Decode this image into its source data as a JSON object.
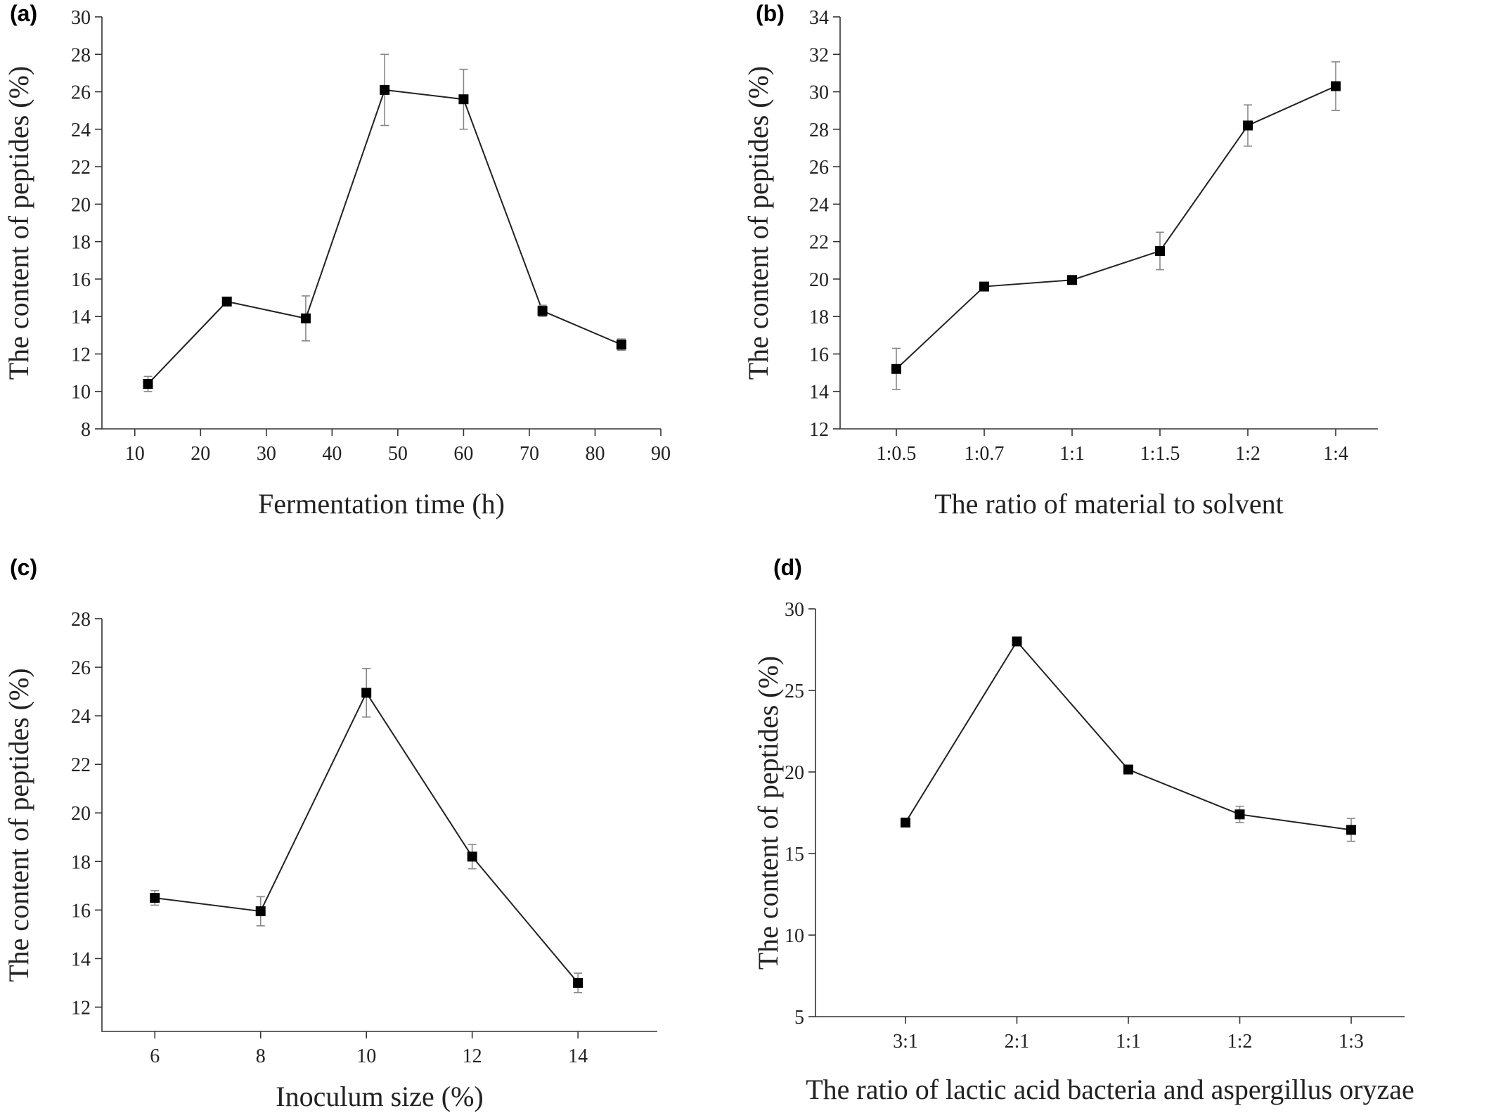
{
  "chart_data": [
    {
      "panel": "(a)",
      "type": "line",
      "xlabel": "Fermentation time (h)",
      "ylabel": "The content of  peptides (%)",
      "x_axis": "numeric",
      "xlim": [
        5,
        90
      ],
      "x_ticks": [
        10,
        20,
        30,
        40,
        50,
        60,
        70,
        80,
        90
      ],
      "ylim": [
        8,
        30
      ],
      "y_ticks": [
        8,
        10,
        12,
        14,
        16,
        18,
        20,
        22,
        24,
        26,
        28,
        30
      ],
      "x": [
        12,
        24,
        36,
        48,
        60,
        72,
        84
      ],
      "values": [
        10.4,
        14.8,
        13.9,
        26.1,
        25.6,
        14.3,
        12.5
      ],
      "errors": [
        0.4,
        0.2,
        1.2,
        1.9,
        1.6,
        0.3,
        0.3
      ],
      "grid": false
    },
    {
      "panel": "(b)",
      "type": "line",
      "xlabel": "The ratio of material to solvent",
      "ylabel": "The content of  peptides (%)",
      "x_axis": "categorical",
      "categories": [
        "1:0.5",
        "1:0.7",
        "1:1",
        "1:1.5",
        "1:2",
        "1:4"
      ],
      "ylim": [
        12,
        34
      ],
      "y_ticks": [
        12,
        14,
        16,
        18,
        20,
        22,
        24,
        26,
        28,
        30,
        32,
        34
      ],
      "values": [
        15.2,
        19.6,
        19.95,
        21.5,
        28.2,
        30.3
      ],
      "errors": [
        1.1,
        0.1,
        0.1,
        1.0,
        1.1,
        1.3
      ],
      "grid": false
    },
    {
      "panel": "(c)",
      "type": "line",
      "xlabel": "Inoculum size (%)",
      "ylabel": "The content of  peptides (%)",
      "x_axis": "numeric",
      "xlim": [
        5,
        15.5
      ],
      "x_ticks": [
        6,
        8,
        10,
        12,
        14
      ],
      "ylim": [
        11,
        28
      ],
      "y_ticks": [
        12,
        14,
        16,
        18,
        20,
        22,
        24,
        26,
        28
      ],
      "x": [
        6,
        8,
        10,
        12,
        14
      ],
      "values": [
        16.5,
        15.95,
        24.95,
        18.2,
        13.0
      ],
      "errors": [
        0.3,
        0.6,
        1.0,
        0.5,
        0.4
      ],
      "grid": false
    },
    {
      "panel": "(d)",
      "type": "line",
      "xlabel": "The ratio of  lactic acid bacteria and aspergillus oryzae",
      "ylabel": "The content of  peptides (%)",
      "x_axis": "categorical",
      "categories": [
        "3:1",
        "2:1",
        "1:1",
        "1:2",
        "1:3"
      ],
      "ylim": [
        5,
        30
      ],
      "y_ticks": [
        5,
        10,
        15,
        20,
        25,
        30
      ],
      "values": [
        16.9,
        28.0,
        20.15,
        17.4,
        16.45
      ],
      "errors": [
        0.2,
        0.2,
        0.2,
        0.5,
        0.7
      ],
      "grid": false
    }
  ]
}
